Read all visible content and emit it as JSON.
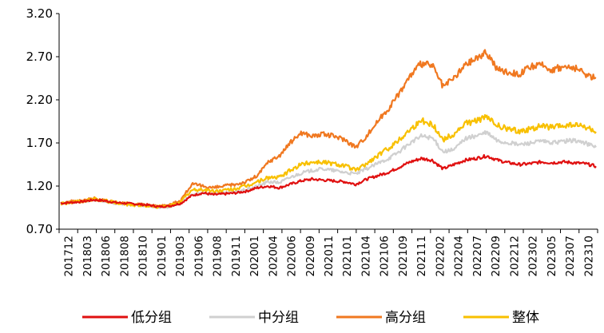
{
  "chart_data": {
    "type": "line",
    "title": "",
    "xlabel": "",
    "ylabel": "",
    "ylim": [
      0.7,
      3.2
    ],
    "yticks": [
      "0.70",
      "1.20",
      "1.70",
      "2.20",
      "2.70",
      "3.20"
    ],
    "xtick_labels": [
      "201712",
      "201803",
      "201806",
      "201808",
      "201810",
      "201901",
      "201903",
      "201906",
      "201908",
      "201911",
      "202001",
      "202004",
      "202006",
      "202009",
      "202011",
      "202101",
      "202104",
      "202106",
      "202109",
      "202111",
      "202202",
      "202204",
      "202207",
      "202209",
      "202212",
      "202302",
      "202305",
      "202307",
      "202310"
    ],
    "grid": false,
    "legend_position": "bottom",
    "series": [
      {
        "name": "低分组",
        "color": "#e01010",
        "values": [
          1.0,
          1.01,
          1.02,
          1.04,
          1.03,
          1.01,
          1.0,
          0.99,
          0.98,
          0.96,
          0.97,
          1.0,
          1.09,
          1.12,
          1.1,
          1.11,
          1.12,
          1.14,
          1.18,
          1.2,
          1.18,
          1.22,
          1.26,
          1.28,
          1.27,
          1.26,
          1.25,
          1.22,
          1.28,
          1.32,
          1.36,
          1.42,
          1.48,
          1.52,
          1.5,
          1.4,
          1.45,
          1.5,
          1.52,
          1.55,
          1.5,
          1.47,
          1.45,
          1.46,
          1.48,
          1.47,
          1.48,
          1.47,
          1.46,
          1.43
        ]
      },
      {
        "name": "中分组",
        "color": "#d0d0d0",
        "values": [
          1.0,
          1.01,
          1.02,
          1.04,
          1.02,
          1.0,
          0.99,
          0.98,
          0.97,
          0.95,
          0.96,
          1.0,
          1.1,
          1.12,
          1.11,
          1.12,
          1.13,
          1.16,
          1.2,
          1.25,
          1.24,
          1.3,
          1.35,
          1.38,
          1.4,
          1.38,
          1.36,
          1.34,
          1.4,
          1.46,
          1.52,
          1.6,
          1.7,
          1.78,
          1.76,
          1.6,
          1.62,
          1.75,
          1.78,
          1.82,
          1.72,
          1.7,
          1.68,
          1.7,
          1.72,
          1.7,
          1.72,
          1.73,
          1.7,
          1.65
        ]
      },
      {
        "name": "高分组",
        "color": "#f07820",
        "values": [
          1.0,
          1.02,
          1.03,
          1.06,
          1.03,
          1.01,
          1.0,
          0.99,
          0.98,
          0.97,
          0.98,
          1.04,
          1.22,
          1.2,
          1.18,
          1.2,
          1.22,
          1.25,
          1.32,
          1.48,
          1.55,
          1.7,
          1.82,
          1.78,
          1.8,
          1.78,
          1.74,
          1.65,
          1.78,
          1.95,
          2.1,
          2.28,
          2.48,
          2.62,
          2.6,
          2.35,
          2.45,
          2.6,
          2.68,
          2.75,
          2.55,
          2.52,
          2.5,
          2.58,
          2.6,
          2.55,
          2.58,
          2.57,
          2.5,
          2.45
        ]
      },
      {
        "name": "整体",
        "color": "#f8c000",
        "values": [
          1.0,
          1.01,
          1.02,
          1.05,
          1.03,
          1.01,
          0.99,
          0.98,
          0.97,
          0.96,
          0.97,
          1.02,
          1.15,
          1.16,
          1.14,
          1.15,
          1.17,
          1.2,
          1.25,
          1.3,
          1.3,
          1.38,
          1.45,
          1.48,
          1.48,
          1.46,
          1.44,
          1.38,
          1.46,
          1.55,
          1.64,
          1.74,
          1.86,
          1.96,
          1.92,
          1.74,
          1.8,
          1.92,
          1.96,
          2.0,
          1.9,
          1.86,
          1.84,
          1.86,
          1.9,
          1.88,
          1.9,
          1.91,
          1.88,
          1.83
        ]
      }
    ]
  }
}
